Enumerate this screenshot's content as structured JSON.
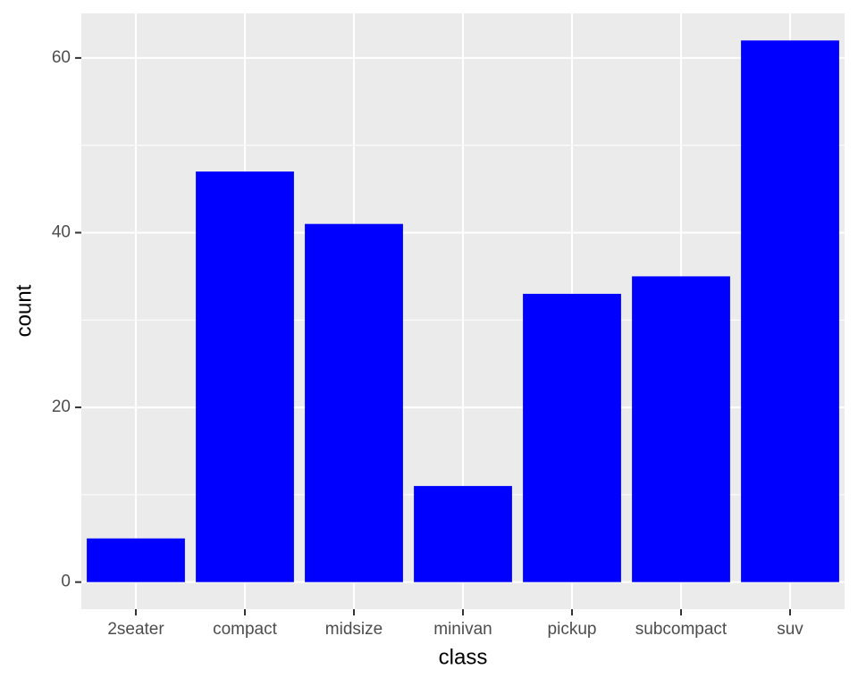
{
  "chart_data": {
    "type": "bar",
    "x_label": "class",
    "y_label": "count",
    "categories": [
      "2seater",
      "compact",
      "midsize",
      "minivan",
      "pickup",
      "subcompact",
      "suv"
    ],
    "values": [
      5,
      47,
      41,
      11,
      33,
      35,
      62
    ],
    "color": "#0000ff",
    "ylim": [
      -3.1,
      65.1
    ],
    "yticks": [
      0,
      20,
      40,
      60
    ],
    "grid": true
  }
}
